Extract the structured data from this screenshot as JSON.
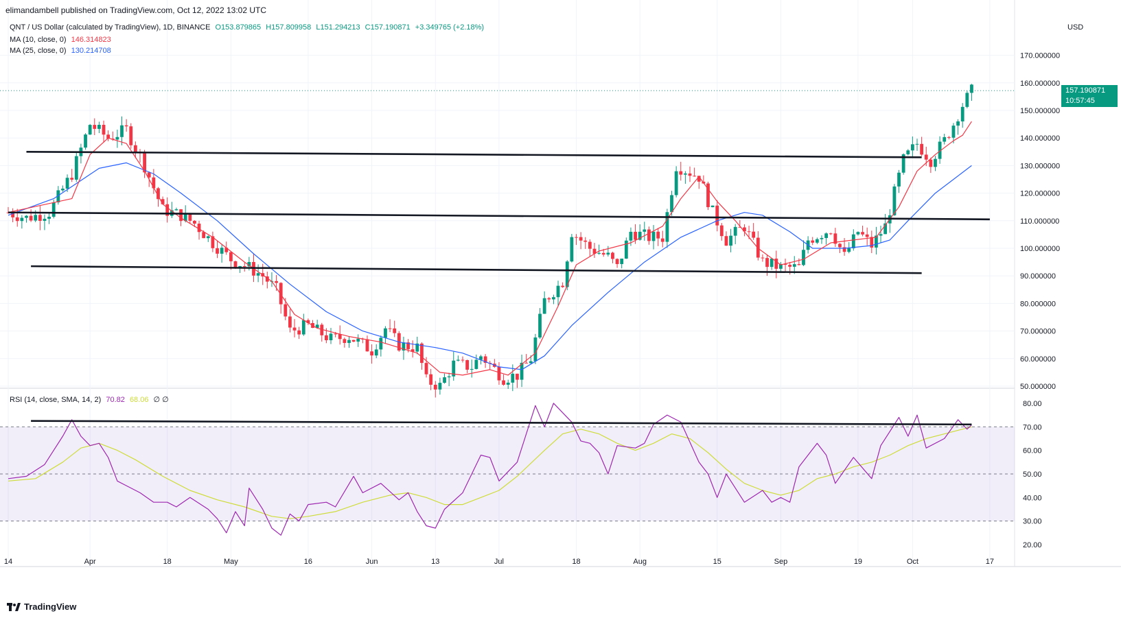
{
  "published": "elimandambell published on TradingView.com, Oct 12, 2022 13:02 UTC",
  "legend": {
    "symbol": "QNT / US Dollar (calculated by TradingView), 1D, BINANCE",
    "open": "O153.879865",
    "high": "H157.809958",
    "low": "L151.294213",
    "close": "C157.190871",
    "change": "+3.349765 (+2.18%)",
    "ma10_label": "MA (10, close, 0)",
    "ma10_value": "146.314823",
    "ma25_label": "MA (25, close, 0)",
    "ma25_value": "130.214708",
    "rsi_label": "RSI (14, close, SMA, 14, 2)",
    "rsi_value": "70.82",
    "rsi_sma_value": "68.06",
    "rsi_extra": "∅ ∅"
  },
  "currency": "USD",
  "price_tag": {
    "price": "157.190871",
    "countdown": "10:57:45"
  },
  "logo_text": "TradingView",
  "colors": {
    "up": "#089981",
    "down": "#f23645",
    "ma10": "#f23645",
    "ma25": "#2962ff",
    "rsi": "#9c27b0",
    "rsi_sma": "#cddc39",
    "band": "#7e57c2"
  },
  "chart_data": [
    {
      "type": "candlestick",
      "y_ticks": [
        "50.000000",
        "60.000000",
        "70.000000",
        "80.000000",
        "90.000000",
        "100.000000",
        "110.000000",
        "120.000000",
        "130.000000",
        "140.000000",
        "150.000000",
        "160.000000",
        "170.000000"
      ],
      "y_tick_values": [
        50,
        60,
        70,
        80,
        90,
        100,
        110,
        120,
        130,
        140,
        150,
        160,
        170
      ],
      "x_ticks": [
        "14",
        "Apr",
        "18",
        "May",
        "16",
        "Jun",
        "13",
        "Jul",
        "18",
        "Aug",
        "15",
        "Sep",
        "19",
        "Oct",
        "17"
      ],
      "x_tick_day_index": [
        0,
        18,
        35,
        49,
        66,
        80,
        94,
        108,
        125,
        139,
        156,
        170,
        187,
        199,
        216
      ],
      "bars_count": 213,
      "price_points": [
        [
          0,
          113
        ],
        [
          4,
          111
        ],
        [
          9,
          113
        ],
        [
          14,
          127
        ],
        [
          18,
          145
        ],
        [
          22,
          140
        ],
        [
          26,
          143
        ],
        [
          30,
          130
        ],
        [
          34,
          114
        ],
        [
          38,
          112
        ],
        [
          41,
          109
        ],
        [
          45,
          102
        ],
        [
          49,
          96
        ],
        [
          53,
          93
        ],
        [
          56,
          90
        ],
        [
          59,
          85
        ],
        [
          62,
          70
        ],
        [
          66,
          72
        ],
        [
          71,
          67
        ],
        [
          75,
          68
        ],
        [
          80,
          63
        ],
        [
          83,
          71
        ],
        [
          86,
          65
        ],
        [
          90,
          64
        ],
        [
          92,
          52
        ],
        [
          95,
          50
        ],
        [
          98,
          58
        ],
        [
          102,
          57
        ],
        [
          104,
          61
        ],
        [
          109,
          53
        ],
        [
          112,
          54
        ],
        [
          115,
          60
        ],
        [
          118,
          81
        ],
        [
          122,
          88
        ],
        [
          124,
          106
        ],
        [
          128,
          100
        ],
        [
          132,
          97
        ],
        [
          134,
          93
        ],
        [
          137,
          106
        ],
        [
          141,
          104
        ],
        [
          144,
          104
        ],
        [
          147,
          130
        ],
        [
          152,
          126
        ],
        [
          155,
          113
        ],
        [
          158,
          103
        ],
        [
          162,
          108
        ],
        [
          166,
          95
        ],
        [
          170,
          93
        ],
        [
          174,
          93
        ],
        [
          176,
          103
        ],
        [
          181,
          107
        ],
        [
          184,
          97
        ],
        [
          187,
          106
        ],
        [
          190,
          101
        ],
        [
          193,
          108
        ],
        [
          197,
          132
        ],
        [
          200,
          138
        ],
        [
          203,
          132
        ],
        [
          206,
          139
        ],
        [
          208,
          145
        ],
        [
          210,
          152
        ],
        [
          212,
          157
        ]
      ],
      "ma10_points": [
        [
          0,
          113
        ],
        [
          14,
          118
        ],
        [
          18,
          134
        ],
        [
          22,
          140
        ],
        [
          26,
          138
        ],
        [
          30,
          128
        ],
        [
          34,
          116
        ],
        [
          38,
          111
        ],
        [
          45,
          104
        ],
        [
          52,
          95
        ],
        [
          58,
          88
        ],
        [
          63,
          76
        ],
        [
          68,
          71
        ],
        [
          75,
          68
        ],
        [
          82,
          66
        ],
        [
          90,
          62
        ],
        [
          95,
          55
        ],
        [
          100,
          54
        ],
        [
          106,
          56
        ],
        [
          110,
          54
        ],
        [
          116,
          62
        ],
        [
          121,
          79
        ],
        [
          125,
          94
        ],
        [
          130,
          99
        ],
        [
          137,
          102
        ],
        [
          144,
          108
        ],
        [
          148,
          118
        ],
        [
          152,
          126
        ],
        [
          156,
          117
        ],
        [
          160,
          110
        ],
        [
          165,
          100
        ],
        [
          170,
          94
        ],
        [
          175,
          96
        ],
        [
          181,
          102
        ],
        [
          186,
          103
        ],
        [
          191,
          104
        ],
        [
          196,
          115
        ],
        [
          200,
          128
        ],
        [
          204,
          134
        ],
        [
          208,
          139
        ],
        [
          210,
          141
        ],
        [
          212,
          146
        ]
      ],
      "ma25_points": [
        [
          0,
          112
        ],
        [
          10,
          118
        ],
        [
          20,
          129
        ],
        [
          26,
          131
        ],
        [
          32,
          127
        ],
        [
          38,
          120
        ],
        [
          46,
          110
        ],
        [
          54,
          98
        ],
        [
          62,
          87
        ],
        [
          70,
          77
        ],
        [
          78,
          70
        ],
        [
          86,
          66
        ],
        [
          94,
          64
        ],
        [
          100,
          62
        ],
        [
          108,
          57
        ],
        [
          113,
          56
        ],
        [
          118,
          61
        ],
        [
          124,
          72
        ],
        [
          132,
          84
        ],
        [
          140,
          95
        ],
        [
          148,
          104
        ],
        [
          156,
          110
        ],
        [
          162,
          113
        ],
        [
          166,
          112
        ],
        [
          172,
          106
        ],
        [
          177,
          100
        ],
        [
          184,
          100
        ],
        [
          190,
          101
        ],
        [
          194,
          103
        ],
        [
          198,
          110
        ],
        [
          204,
          120
        ],
        [
          208,
          125
        ],
        [
          212,
          130
        ]
      ],
      "last_price": 157.190871,
      "annotations": {
        "horizontal_lines_price": [
          [
            4,
            135,
            201,
            133
          ],
          [
            0,
            113,
            216,
            110.5
          ],
          [
            5,
            93.5,
            201,
            91
          ]
        ]
      }
    },
    {
      "type": "line",
      "name": "RSI",
      "y_ticks": [
        "20.00",
        "30.00",
        "40.00",
        "50.00",
        "60.00",
        "70.00",
        "80.00"
      ],
      "y_tick_values": [
        20,
        30,
        40,
        50,
        60,
        70,
        80
      ],
      "band": [
        30,
        70
      ],
      "dashed_levels": [
        30,
        50,
        70
      ],
      "rsi_points": [
        [
          0,
          48
        ],
        [
          4,
          49
        ],
        [
          8,
          54
        ],
        [
          10,
          60
        ],
        [
          12,
          66
        ],
        [
          14,
          73
        ],
        [
          16,
          66
        ],
        [
          18,
          62
        ],
        [
          20,
          63
        ],
        [
          22,
          57
        ],
        [
          24,
          47
        ],
        [
          26,
          45
        ],
        [
          29,
          42
        ],
        [
          32,
          38
        ],
        [
          35,
          38
        ],
        [
          37,
          36
        ],
        [
          40,
          40
        ],
        [
          44,
          35
        ],
        [
          46,
          31
        ],
        [
          48,
          25
        ],
        [
          50,
          34
        ],
        [
          52,
          28
        ],
        [
          53,
          44
        ],
        [
          56,
          35
        ],
        [
          58,
          27
        ],
        [
          60,
          24
        ],
        [
          62,
          33
        ],
        [
          64,
          30
        ],
        [
          66,
          37
        ],
        [
          70,
          38
        ],
        [
          72,
          36
        ],
        [
          76,
          49
        ],
        [
          78,
          42
        ],
        [
          82,
          46
        ],
        [
          86,
          39
        ],
        [
          88,
          42
        ],
        [
          90,
          34
        ],
        [
          92,
          28
        ],
        [
          94,
          27
        ],
        [
          96,
          35
        ],
        [
          100,
          42
        ],
        [
          104,
          58
        ],
        [
          106,
          57
        ],
        [
          108,
          47
        ],
        [
          112,
          55
        ],
        [
          116,
          79
        ],
        [
          118,
          70
        ],
        [
          120,
          80
        ],
        [
          124,
          72
        ],
        [
          126,
          64
        ],
        [
          128,
          63
        ],
        [
          130,
          59
        ],
        [
          132,
          50
        ],
        [
          134,
          62
        ],
        [
          138,
          61
        ],
        [
          140,
          63
        ],
        [
          142,
          71
        ],
        [
          145,
          75
        ],
        [
          148,
          72
        ],
        [
          152,
          55
        ],
        [
          154,
          50
        ],
        [
          156,
          40
        ],
        [
          158,
          50
        ],
        [
          160,
          44
        ],
        [
          162,
          38
        ],
        [
          166,
          43
        ],
        [
          168,
          38
        ],
        [
          170,
          40
        ],
        [
          172,
          38
        ],
        [
          174,
          53
        ],
        [
          178,
          63
        ],
        [
          180,
          58
        ],
        [
          182,
          46
        ],
        [
          186,
          57
        ],
        [
          190,
          48
        ],
        [
          192,
          62
        ],
        [
          196,
          74
        ],
        [
          198,
          66
        ],
        [
          200,
          75
        ],
        [
          202,
          61
        ],
        [
          206,
          65
        ],
        [
          209,
          73
        ],
        [
          211,
          69
        ],
        [
          212,
          70.8
        ]
      ],
      "rsi_sma_points": [
        [
          0,
          47
        ],
        [
          6,
          48
        ],
        [
          12,
          55
        ],
        [
          16,
          61
        ],
        [
          20,
          63
        ],
        [
          24,
          60
        ],
        [
          28,
          56
        ],
        [
          34,
          49
        ],
        [
          40,
          43
        ],
        [
          46,
          39
        ],
        [
          52,
          36
        ],
        [
          58,
          32
        ],
        [
          62,
          31
        ],
        [
          66,
          32
        ],
        [
          72,
          34
        ],
        [
          78,
          38
        ],
        [
          84,
          41
        ],
        [
          88,
          42
        ],
        [
          92,
          40
        ],
        [
          96,
          37
        ],
        [
          100,
          37
        ],
        [
          104,
          40
        ],
        [
          108,
          43
        ],
        [
          112,
          49
        ],
        [
          118,
          60
        ],
        [
          122,
          67
        ],
        [
          126,
          69
        ],
        [
          130,
          67
        ],
        [
          134,
          63
        ],
        [
          138,
          60
        ],
        [
          142,
          63
        ],
        [
          146,
          67
        ],
        [
          150,
          65
        ],
        [
          154,
          59
        ],
        [
          158,
          52
        ],
        [
          162,
          46
        ],
        [
          166,
          43
        ],
        [
          170,
          41
        ],
        [
          174,
          43
        ],
        [
          178,
          48
        ],
        [
          182,
          50
        ],
        [
          186,
          53
        ],
        [
          190,
          55
        ],
        [
          194,
          58
        ],
        [
          198,
          62
        ],
        [
          202,
          65
        ],
        [
          206,
          67
        ],
        [
          210,
          69
        ],
        [
          212,
          70
        ]
      ],
      "annotations": {
        "horizontal_lines_rsi": [
          [
            5,
            72.5,
            212,
            71
          ]
        ]
      }
    }
  ]
}
